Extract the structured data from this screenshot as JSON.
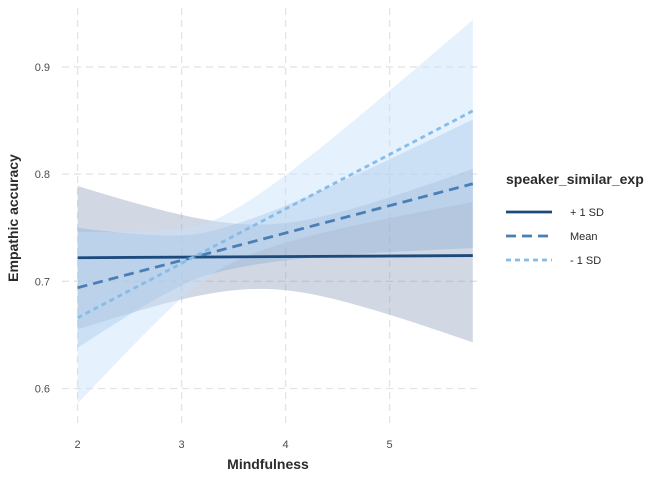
{
  "chart_data": {
    "type": "line",
    "title": "",
    "xlabel": "Mindfulness",
    "ylabel": "Empathic accuracy",
    "xlim": [
      1.85,
      5.85
    ],
    "ylim": [
      0.565,
      0.955
    ],
    "x_ticks": [
      "2",
      "3",
      "4",
      "5"
    ],
    "y_ticks": [
      "0.6",
      "0.7",
      "0.8",
      "0.9"
    ],
    "x_range": [
      2,
      5.8
    ],
    "grid": true,
    "legend": {
      "title": "speaker_similar_exp",
      "position": "right"
    },
    "series": [
      {
        "name": "+ 1 SD",
        "style": "solid",
        "color": "#1c4a7d",
        "band_color": "#8c9ebc",
        "band_opacity": 0.4,
        "x": [
          2,
          5.8
        ],
        "y": [
          0.722,
          0.724
        ],
        "band_center_x": 3.75,
        "band_half_width_center": 0.03,
        "band_half_width_left": 0.067,
        "band_half_width_right": 0.081
      },
      {
        "name": "Mean",
        "style": "dashed",
        "color": "#4a7fb5",
        "band_color": "#7ea9d6",
        "band_opacity": 0.35,
        "x": [
          2,
          5.8
        ],
        "y": [
          0.694,
          0.791
        ],
        "band_center_x": 3.3,
        "band_half_width_center": 0.02,
        "band_half_width_left": 0.056,
        "band_half_width_right": 0.06
      },
      {
        "name": "- 1 SD",
        "style": "dotted",
        "color": "#85bce8",
        "band_color": "#c6e1fa",
        "band_opacity": 0.45,
        "x": [
          2,
          5.8
        ],
        "y": [
          0.666,
          0.859
        ],
        "band_center_x": 3.4,
        "band_half_width_center": 0.024,
        "band_half_width_left": 0.08,
        "band_half_width_right": 0.085
      }
    ]
  }
}
